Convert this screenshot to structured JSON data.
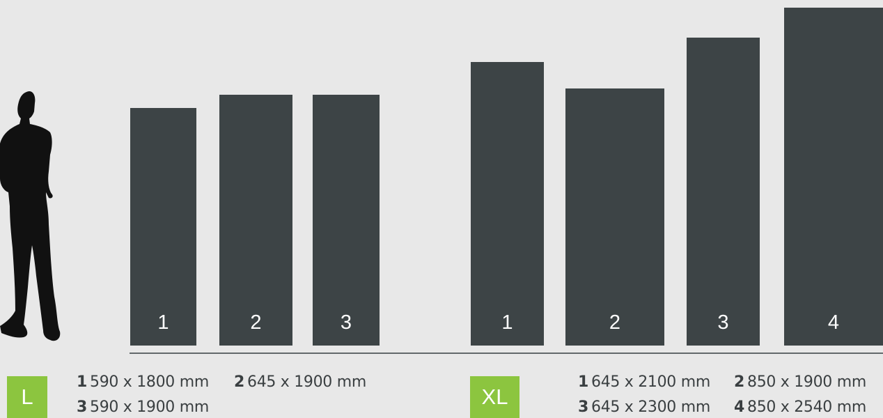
{
  "group_l": {
    "badge": "L",
    "bars": [
      {
        "label": "1",
        "height_mm": 1800
      },
      {
        "label": "2",
        "height_mm": 1900
      },
      {
        "label": "3",
        "height_mm": 1900
      }
    ],
    "specs": [
      {
        "num": "1",
        "dims": "590 x 1800 mm"
      },
      {
        "num": "2",
        "dims": "645 x 1900 mm"
      },
      {
        "num": "3",
        "dims": "590 x 1900 mm"
      }
    ]
  },
  "group_xl": {
    "badge": "XL",
    "bars": [
      {
        "label": "1",
        "height_mm": 2100
      },
      {
        "label": "2",
        "height_mm": 1900
      },
      {
        "label": "3",
        "height_mm": 2300
      },
      {
        "label": "4",
        "height_mm": 2540
      }
    ],
    "specs": [
      {
        "num": "1",
        "dims": "645 x 2100 mm"
      },
      {
        "num": "2",
        "dims": "850 x 1900 mm"
      },
      {
        "num": "3",
        "dims": "645 x 2300 mm"
      },
      {
        "num": "4",
        "dims": "850 x 2540 mm"
      }
    ]
  },
  "colors": {
    "background": "#e8e8e8",
    "bar": "#3d4446",
    "badge": "#8cc53f",
    "silhouette": "#111111"
  }
}
